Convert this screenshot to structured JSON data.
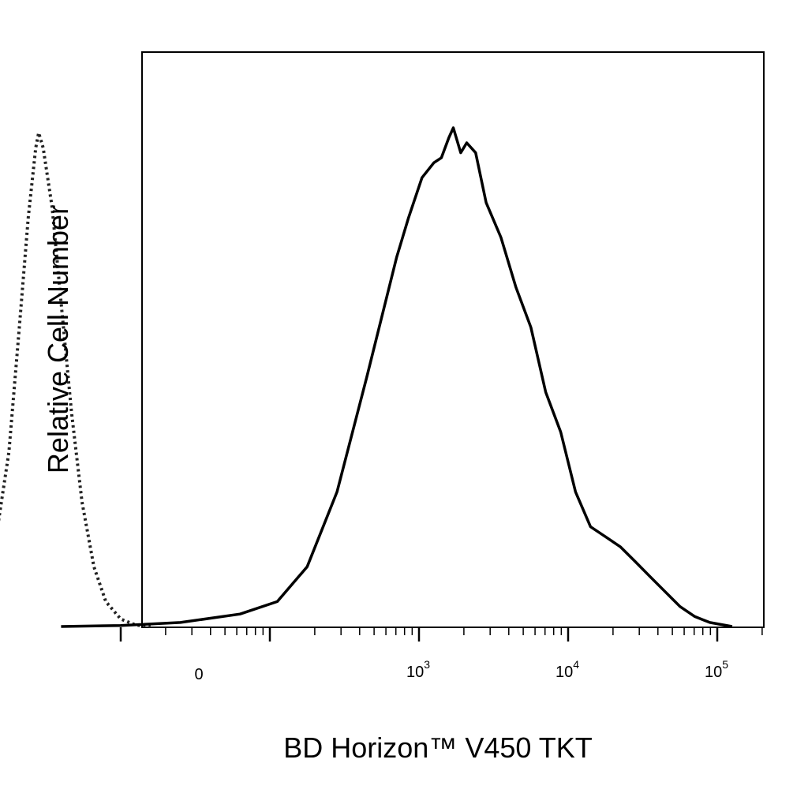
{
  "chart_data": {
    "type": "area",
    "title": "",
    "xlabel": "BD Horizon™ V450 TKT",
    "ylabel": "Relative Cell Number",
    "x_scale": "biexponential (log above ~10^2.5)",
    "x_range_labels": [
      "0",
      "10^5"
    ],
    "x_tick_labels": [
      {
        "id": "zero",
        "base": "0",
        "exp": ""
      },
      {
        "id": "e3",
        "base": "10",
        "exp": "3"
      },
      {
        "id": "e4",
        "base": "10",
        "exp": "4"
      },
      {
        "id": "e5",
        "base": "10",
        "exp": "5"
      }
    ],
    "y_range": [
      0,
      100
    ],
    "y_ticks_shown": false,
    "grid": false,
    "legend": "none",
    "series": [
      {
        "style": "dotted",
        "color": "#222222",
        "points": [
          [
            -0.3,
            0
          ],
          [
            -0.1,
            1
          ],
          [
            0.05,
            5
          ],
          [
            0.15,
            15
          ],
          [
            0.25,
            35
          ],
          [
            0.32,
            60
          ],
          [
            0.38,
            82
          ],
          [
            0.43,
            96
          ],
          [
            0.45,
            99
          ],
          [
            0.48,
            96
          ],
          [
            0.54,
            84
          ],
          [
            0.6,
            65
          ],
          [
            0.67,
            43
          ],
          [
            0.74,
            25
          ],
          [
            0.82,
            12
          ],
          [
            0.9,
            5
          ],
          [
            1.0,
            1.5
          ],
          [
            1.1,
            0.3
          ],
          [
            1.2,
            0
          ]
        ]
      },
      {
        "style": "solid",
        "color": "#000000",
        "points": [
          [
            0.6,
            0
          ],
          [
            1.0,
            0.2
          ],
          [
            1.4,
            0.8
          ],
          [
            1.8,
            2.5
          ],
          [
            2.05,
            5
          ],
          [
            2.25,
            12
          ],
          [
            2.45,
            27
          ],
          [
            2.65,
            50
          ],
          [
            2.85,
            74
          ],
          [
            2.93,
            82
          ],
          [
            3.02,
            90
          ],
          [
            3.1,
            93
          ],
          [
            3.15,
            94
          ],
          [
            3.2,
            98
          ],
          [
            3.23,
            100
          ],
          [
            3.28,
            95
          ],
          [
            3.32,
            97
          ],
          [
            3.38,
            95
          ],
          [
            3.45,
            85
          ],
          [
            3.55,
            78
          ],
          [
            3.65,
            68
          ],
          [
            3.75,
            60
          ],
          [
            3.85,
            47
          ],
          [
            3.95,
            39
          ],
          [
            4.05,
            27
          ],
          [
            4.15,
            20
          ],
          [
            4.25,
            18
          ],
          [
            4.35,
            16
          ],
          [
            4.45,
            13
          ],
          [
            4.55,
            10
          ],
          [
            4.65,
            7
          ],
          [
            4.75,
            4
          ],
          [
            4.85,
            2
          ],
          [
            4.95,
            0.8
          ],
          [
            5.1,
            0
          ]
        ]
      }
    ]
  }
}
